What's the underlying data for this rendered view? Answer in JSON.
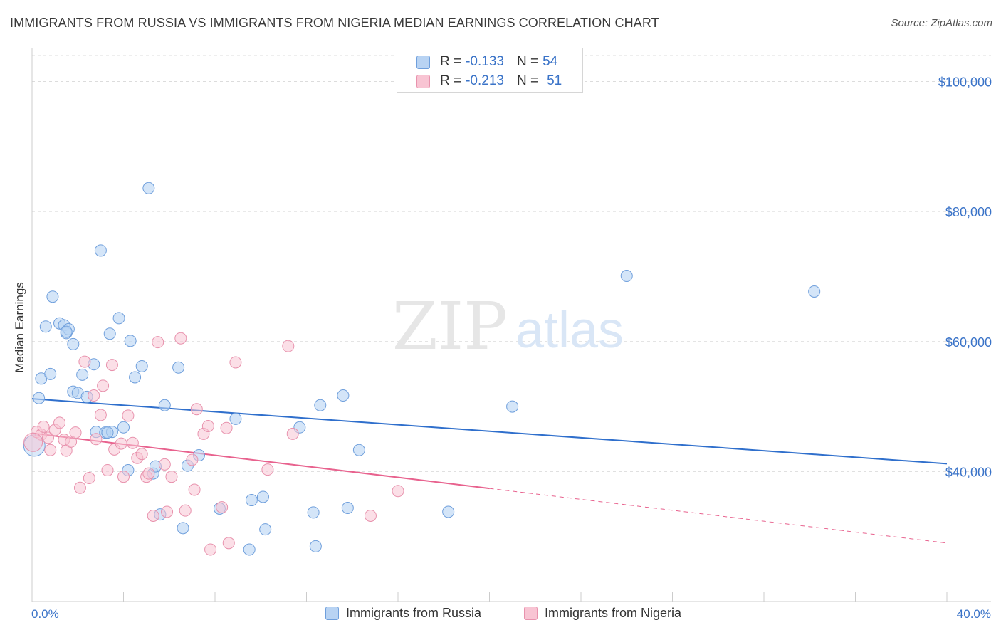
{
  "header": {
    "title": "IMMIGRANTS FROM RUSSIA VS IMMIGRANTS FROM NIGERIA MEDIAN EARNINGS CORRELATION CHART",
    "source": "Source: ZipAtlas.com"
  },
  "watermark": {
    "zip": "ZIP",
    "atlas": "atlas"
  },
  "legend": {
    "rows": [
      {
        "r_label": "R =",
        "r_value": "-0.133",
        "n_label": "N =",
        "n_value": "54"
      },
      {
        "r_label": "R =",
        "r_value": "-0.213",
        "n_label": "N =",
        "n_value": "51"
      }
    ]
  },
  "colors": {
    "russia_fill": "#b8d3f3",
    "russia_stroke": "#6f9fdc",
    "russia_line": "#2f6fcc",
    "nigeria_fill": "#f8c4d3",
    "nigeria_stroke": "#e892ad",
    "nigeria_line": "#e8628e",
    "axis_label": "#3a73c8",
    "grid": "#dcdcdc"
  },
  "chart_data": {
    "type": "scatter",
    "title": "IMMIGRANTS FROM RUSSIA VS IMMIGRANTS FROM NIGERIA MEDIAN EARNINGS CORRELATION CHART",
    "xlabel": "",
    "ylabel": "Median Earnings",
    "xlim": [
      0,
      40
    ],
    "ylim": [
      20000,
      104000
    ],
    "x_tick_labels": [
      "0.0%",
      "40.0%"
    ],
    "y_ticks": [
      40000,
      60000,
      80000,
      100000
    ],
    "y_tick_labels": [
      "$40,000",
      "$60,000",
      "$80,000",
      "$100,000"
    ],
    "grid": "horizontal dashed",
    "legend_position": "top-center",
    "series": [
      {
        "name": "Immigrants from Russia",
        "color": "#6f9fdc",
        "trend": {
          "x": [
            0,
            40
          ],
          "y": [
            51200,
            41200
          ]
        },
        "points": [
          [
            0.3,
            51300
          ],
          [
            0.4,
            54300
          ],
          [
            0.6,
            62300
          ],
          [
            0.8,
            55000
          ],
          [
            0.9,
            66900
          ],
          [
            1.2,
            62800
          ],
          [
            1.4,
            62500
          ],
          [
            1.5,
            61300
          ],
          [
            1.6,
            61900
          ],
          [
            1.8,
            59600
          ],
          [
            1.8,
            52300
          ],
          [
            2.0,
            52100
          ],
          [
            2.2,
            54900
          ],
          [
            2.4,
            51500
          ],
          [
            2.7,
            56500
          ],
          [
            2.8,
            46100
          ],
          [
            3.0,
            74000
          ],
          [
            3.2,
            46000
          ],
          [
            3.4,
            61200
          ],
          [
            3.5,
            46100
          ],
          [
            3.8,
            63600
          ],
          [
            4.0,
            46800
          ],
          [
            4.2,
            40200
          ],
          [
            4.3,
            60100
          ],
          [
            4.5,
            54500
          ],
          [
            4.8,
            56200
          ],
          [
            5.1,
            83600
          ],
          [
            5.3,
            39700
          ],
          [
            5.4,
            40800
          ],
          [
            5.6,
            33400
          ],
          [
            5.8,
            50200
          ],
          [
            6.4,
            56000
          ],
          [
            6.6,
            31300
          ],
          [
            6.8,
            40900
          ],
          [
            7.3,
            42500
          ],
          [
            8.2,
            34300
          ],
          [
            8.9,
            48100
          ],
          [
            9.5,
            28000
          ],
          [
            9.6,
            35600
          ],
          [
            10.1,
            36100
          ],
          [
            10.2,
            31100
          ],
          [
            11.7,
            46800
          ],
          [
            12.3,
            33700
          ],
          [
            12.4,
            28500
          ],
          [
            12.6,
            50200
          ],
          [
            13.6,
            51700
          ],
          [
            13.8,
            34400
          ],
          [
            14.3,
            43300
          ],
          [
            18.2,
            33800
          ],
          [
            21.0,
            50000
          ],
          [
            26.0,
            70100
          ],
          [
            34.2,
            67700
          ],
          [
            1.5,
            61500
          ],
          [
            3.3,
            46000
          ]
        ]
      },
      {
        "name": "Immigrants from Nigeria",
        "color": "#e892ad",
        "trend": {
          "x": [
            0,
            20
          ],
          "y": [
            45900,
            37400
          ]
        },
        "trend_dashed": {
          "x": [
            20,
            40
          ],
          "y": [
            37400,
            29000
          ]
        },
        "points": [
          [
            0.2,
            46100
          ],
          [
            0.4,
            45700
          ],
          [
            0.5,
            46900
          ],
          [
            0.7,
            45200
          ],
          [
            0.8,
            43300
          ],
          [
            1.0,
            46400
          ],
          [
            1.2,
            47500
          ],
          [
            1.4,
            44900
          ],
          [
            1.5,
            43200
          ],
          [
            1.7,
            44600
          ],
          [
            1.9,
            46000
          ],
          [
            2.1,
            37500
          ],
          [
            2.3,
            56900
          ],
          [
            2.5,
            39000
          ],
          [
            2.7,
            51700
          ],
          [
            2.8,
            45000
          ],
          [
            3.0,
            48700
          ],
          [
            3.1,
            53200
          ],
          [
            3.3,
            40200
          ],
          [
            3.5,
            56400
          ],
          [
            3.6,
            43400
          ],
          [
            3.9,
            44300
          ],
          [
            4.0,
            39200
          ],
          [
            4.2,
            48600
          ],
          [
            4.4,
            44400
          ],
          [
            4.6,
            42100
          ],
          [
            4.8,
            42700
          ],
          [
            5.0,
            39200
          ],
          [
            5.1,
            39700
          ],
          [
            5.3,
            33200
          ],
          [
            5.5,
            59900
          ],
          [
            5.8,
            41100
          ],
          [
            5.9,
            33800
          ],
          [
            6.1,
            39200
          ],
          [
            6.5,
            60500
          ],
          [
            6.7,
            34000
          ],
          [
            7.0,
            41800
          ],
          [
            7.1,
            37200
          ],
          [
            7.2,
            49600
          ],
          [
            7.5,
            45800
          ],
          [
            7.7,
            47000
          ],
          [
            7.8,
            28000
          ],
          [
            8.3,
            34500
          ],
          [
            8.5,
            46700
          ],
          [
            8.6,
            29000
          ],
          [
            8.9,
            56800
          ],
          [
            10.3,
            40300
          ],
          [
            11.2,
            59300
          ],
          [
            11.4,
            45800
          ],
          [
            14.8,
            33200
          ],
          [
            16.0,
            37000
          ]
        ]
      }
    ]
  },
  "bottom_legend": {
    "items": [
      {
        "label": "Immigrants from Russia"
      },
      {
        "label": "Immigrants from Nigeria"
      }
    ]
  }
}
